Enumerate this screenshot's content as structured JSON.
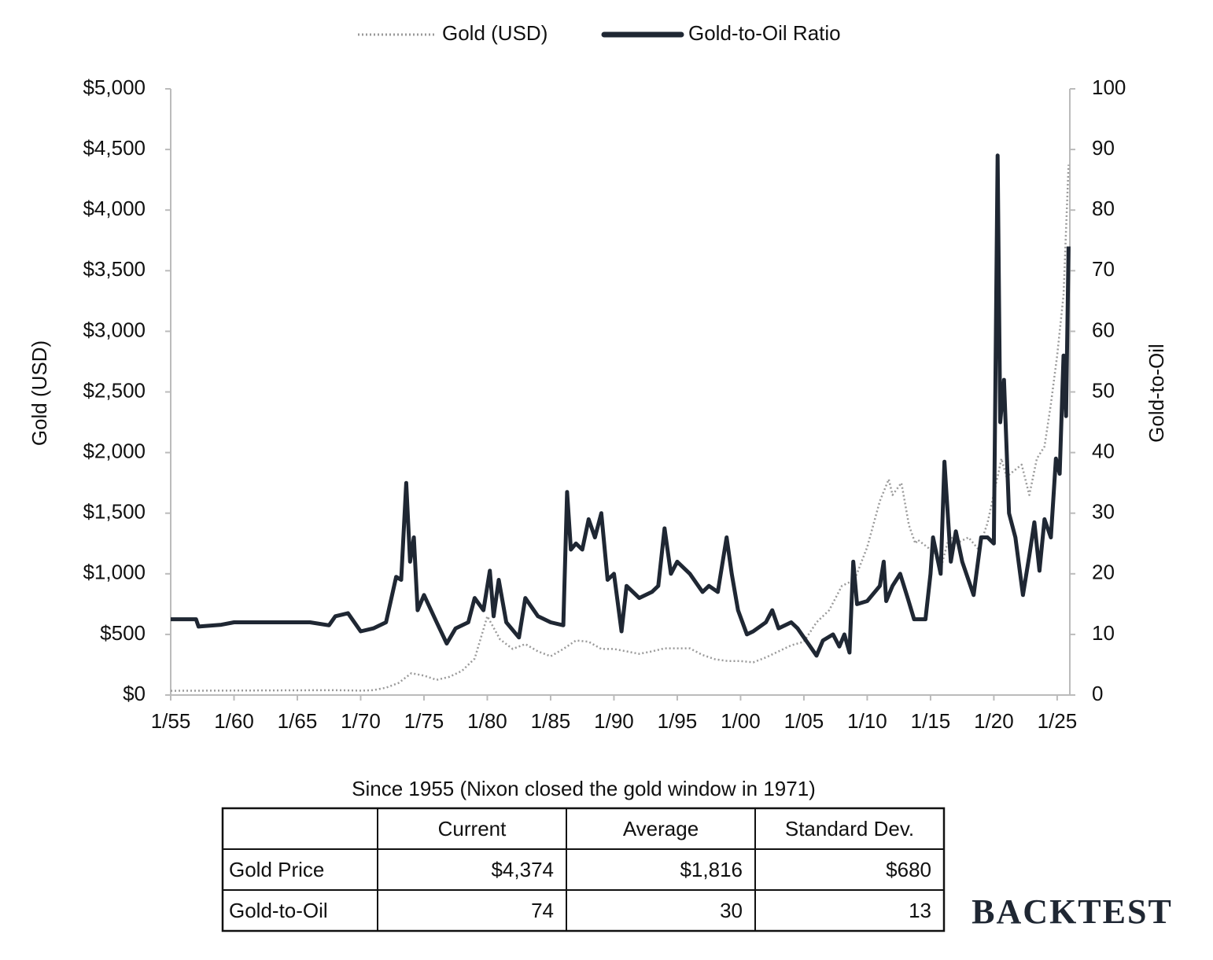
{
  "chart_data": {
    "type": "line",
    "legend": "top",
    "y_label": "Gold (USD)",
    "y2_label": "Gold-to-Oil",
    "xlim": [
      1955,
      2026
    ],
    "xticks": [
      {
        "value": 1955,
        "label": "1/55"
      },
      {
        "value": 1960,
        "label": "1/60"
      },
      {
        "value": 1965,
        "label": "1/65"
      },
      {
        "value": 1970,
        "label": "1/70"
      },
      {
        "value": 1975,
        "label": "1/75"
      },
      {
        "value": 1980,
        "label": "1/80"
      },
      {
        "value": 1985,
        "label": "1/85"
      },
      {
        "value": 1990,
        "label": "1/90"
      },
      {
        "value": 1995,
        "label": "1/95"
      },
      {
        "value": 2000,
        "label": "1/00"
      },
      {
        "value": 2005,
        "label": "1/05"
      },
      {
        "value": 2010,
        "label": "1/10"
      },
      {
        "value": 2015,
        "label": "1/15"
      },
      {
        "value": 2020,
        "label": "1/20"
      },
      {
        "value": 2025,
        "label": "1/25"
      }
    ],
    "ylim": [
      0,
      5000
    ],
    "yticks": [
      {
        "value": 0,
        "label": "$0"
      },
      {
        "value": 500,
        "label": "$500"
      },
      {
        "value": 1000,
        "label": "$1,000"
      },
      {
        "value": 1500,
        "label": "$1,500"
      },
      {
        "value": 2000,
        "label": "$2,000"
      },
      {
        "value": 2500,
        "label": "$2,500"
      },
      {
        "value": 3000,
        "label": "$3,000"
      },
      {
        "value": 3500,
        "label": "$3,500"
      },
      {
        "value": 4000,
        "label": "$4,000"
      },
      {
        "value": 4500,
        "label": "$4,500"
      },
      {
        "value": 5000,
        "label": "$5,000"
      }
    ],
    "y2lim": [
      0,
      100
    ],
    "y2ticks": [
      0,
      10,
      20,
      30,
      40,
      50,
      60,
      70,
      80,
      90,
      100
    ],
    "series": [
      {
        "name": "Gold (USD)",
        "color": "#9a9a9a",
        "style": "dotted",
        "x": [
          1955,
          1968,
          1970,
          1971,
          1972,
          1973,
          1974,
          1975,
          1976,
          1977,
          1978,
          1979,
          1980,
          1981,
          1982,
          1983,
          1984,
          1985,
          1986,
          1987,
          1988,
          1989,
          1990,
          1991,
          1992,
          1993,
          1994,
          1995,
          1996,
          1997,
          1998,
          1999,
          2000,
          2001,
          2002,
          2003,
          2004,
          2005,
          2006,
          2007,
          2008,
          2009,
          2010,
          2011,
          2011.7,
          2012,
          2012.7,
          2013.3,
          2013.8,
          2014,
          2015,
          2015.9,
          2016.5,
          2017,
          2018,
          2018.8,
          2019.5,
          2020.6,
          2021,
          2022.2,
          2022.8,
          2023.4,
          2024,
          2024.5,
          2025,
          2025.5,
          2025.9
        ],
        "values": [
          35,
          40,
          36,
          40,
          60,
          100,
          180,
          160,
          125,
          150,
          200,
          300,
          650,
          460,
          380,
          420,
          360,
          320,
          380,
          450,
          440,
          380,
          380,
          360,
          340,
          360,
          385,
          385,
          385,
          330,
          295,
          280,
          280,
          270,
          310,
          360,
          410,
          440,
          600,
          700,
          900,
          950,
          1220,
          1600,
          1780,
          1650,
          1750,
          1400,
          1250,
          1280,
          1200,
          1080,
          1320,
          1250,
          1300,
          1200,
          1420,
          1950,
          1800,
          1900,
          1650,
          1950,
          2050,
          2400,
          2800,
          3300,
          4374
        ]
      },
      {
        "name": "Gold-to-Oil Ratio",
        "color": "#1f2733",
        "style": "solid",
        "axis": "y2",
        "x": [
          1955,
          1957,
          1957.2,
          1959,
          1960,
          1966,
          1967.5,
          1968,
          1969,
          1970,
          1971,
          1972,
          1972.8,
          1973.2,
          1973.6,
          1973.9,
          1974.2,
          1974.5,
          1975,
          1976,
          1976.8,
          1977.5,
          1978.5,
          1979,
          1979.7,
          1980.2,
          1980.5,
          1980.9,
          1981.5,
          1982.5,
          1983,
          1984,
          1985,
          1986,
          1986.3,
          1986.6,
          1987,
          1987.5,
          1988,
          1988.5,
          1989,
          1989.5,
          1990,
          1990.6,
          1991,
          1992,
          1993,
          1993.5,
          1994,
          1994.5,
          1995,
          1996,
          1997,
          1997.5,
          1998.2,
          1998.9,
          1999.3,
          1999.8,
          2000.5,
          2001,
          2002,
          2002.5,
          2003,
          2004,
          2004.5,
          2005.5,
          2006,
          2006.5,
          2007.3,
          2007.8,
          2008.2,
          2008.6,
          2008.9,
          2009.2,
          2010,
          2011,
          2011.3,
          2011.5,
          2012,
          2012.6,
          2013.2,
          2013.7,
          2014.6,
          2015,
          2015.2,
          2015.8,
          2016.1,
          2016.6,
          2017,
          2017.5,
          2018.4,
          2019,
          2019.5,
          2020,
          2020.3,
          2020.5,
          2020.8,
          2021.2,
          2021.7,
          2022.3,
          2022.8,
          2023.2,
          2023.6,
          2024,
          2024.5,
          2024.9,
          2025.2,
          2025.5,
          2025.7,
          2025.9
        ],
        "values": [
          12.5,
          12.5,
          11.3,
          11.6,
          12,
          12,
          11.5,
          13,
          13.5,
          10.5,
          11,
          12,
          19.5,
          19,
          35,
          22,
          26,
          14,
          16.5,
          12,
          8.5,
          11,
          12,
          16,
          14,
          20.5,
          13,
          19,
          12,
          9.5,
          16,
          13,
          12,
          11.5,
          33.5,
          24,
          25,
          24,
          29,
          26,
          30,
          19,
          20,
          10.5,
          18,
          16,
          17,
          18,
          27.5,
          20,
          22,
          20,
          17,
          18,
          17,
          26,
          20,
          14,
          10,
          10.5,
          12,
          14,
          11,
          12,
          11,
          8,
          6.5,
          9,
          10,
          8,
          10,
          7,
          22,
          15,
          15.5,
          18,
          22,
          15.5,
          18,
          20,
          16,
          12.5,
          12.5,
          20,
          26,
          20,
          38.5,
          22,
          27,
          22,
          16.5,
          26,
          26,
          25,
          89,
          45,
          52,
          30,
          26,
          16.5,
          23,
          28.5,
          20.5,
          29,
          26,
          39,
          36.5,
          56,
          46,
          74
        ]
      }
    ]
  },
  "table": {
    "title": "Since 1955 (Nixon closed the gold window in 1971)",
    "columns": [
      "Current",
      "Average",
      "Standard Dev."
    ],
    "rows": [
      [
        "Gold Price",
        "$4,374",
        "$1,816",
        "$680"
      ],
      [
        "Gold-to-Oil",
        "74",
        "30",
        "13"
      ]
    ]
  },
  "brand": "BACKTEST"
}
